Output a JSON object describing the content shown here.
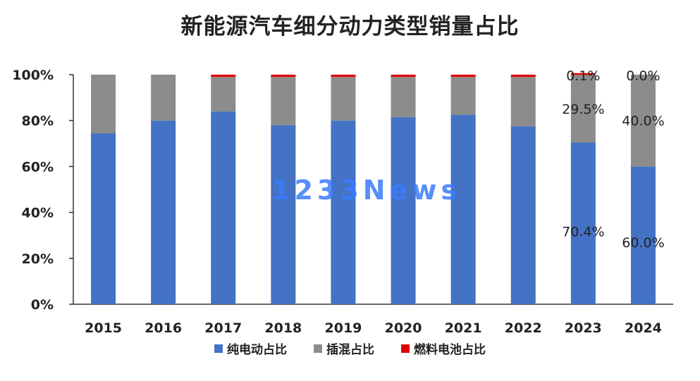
{
  "chart_data": {
    "type": "bar",
    "stacked": true,
    "title": "新能源汽车细分动力类型销量占比",
    "categories": [
      "2015",
      "2016",
      "2017",
      "2018",
      "2019",
      "2020",
      "2021",
      "2022",
      "2023",
      "2024"
    ],
    "series": [
      {
        "name": "纯电动占比",
        "color": "#4472c4",
        "values": [
          74.5,
          80,
          84,
          78,
          80,
          81.5,
          82.5,
          77.5,
          70.4,
          60.0
        ]
      },
      {
        "name": "插混占比",
        "color": "#8c8c8c",
        "values": [
          25.5,
          20,
          15,
          21,
          19,
          17.5,
          16.5,
          21.5,
          29.5,
          40.0
        ]
      },
      {
        "name": "燃料电池占比",
        "color": "#e00000",
        "values": [
          0,
          0,
          1,
          1,
          1,
          1,
          1,
          1,
          0.1,
          0.0
        ]
      }
    ],
    "y_tick_labels": [
      "0%",
      "20%",
      "40%",
      "60%",
      "80%",
      "100%"
    ],
    "ylim": [
      0,
      100
    ],
    "grid": false,
    "legend_position": "bottom",
    "annotations": [
      {
        "category": "2023",
        "series": "燃料电池占比",
        "text": "0.1%"
      },
      {
        "category": "2023",
        "series": "插混占比",
        "text": "29.5%"
      },
      {
        "category": "2023",
        "series": "纯电动占比",
        "text": "70.4%"
      },
      {
        "category": "2024",
        "series": "燃料电池占比",
        "text": "0.0%"
      },
      {
        "category": "2024",
        "series": "插混占比",
        "text": "40.0%"
      },
      {
        "category": "2024",
        "series": "纯电动占比",
        "text": "60.0%"
      }
    ]
  },
  "watermark": "1233News"
}
